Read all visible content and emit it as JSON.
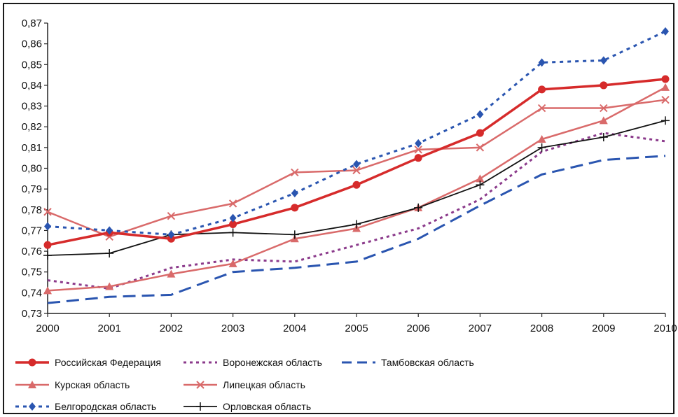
{
  "chart_data": {
    "type": "line",
    "x": [
      "2000",
      "2001",
      "2002",
      "2003",
      "2004",
      "2005",
      "2006",
      "2007",
      "2008",
      "2009",
      "2010"
    ],
    "ylim": [
      0.73,
      0.87
    ],
    "yticks": [
      "0,73",
      "0,74",
      "0,75",
      "0,76",
      "0,77",
      "0,78",
      "0,79",
      "0,80",
      "0,81",
      "0,82",
      "0,83",
      "0,84",
      "0,85",
      "0,86",
      "0,87"
    ],
    "grid": false,
    "legend_position": "bottom",
    "series": [
      {
        "name": "Российская Федерация",
        "color": "#d62b2b",
        "style": "solid",
        "marker": "circle",
        "width": 3.5,
        "values": [
          0.763,
          0.769,
          0.766,
          0.773,
          0.781,
          0.792,
          0.805,
          0.817,
          0.838,
          0.84,
          0.843
        ]
      },
      {
        "name": "Воронежская область",
        "color": "#8b3a8b",
        "style": "dotted",
        "marker": "none",
        "width": 3,
        "values": [
          0.746,
          0.742,
          0.752,
          0.756,
          0.755,
          0.763,
          0.771,
          0.785,
          0.808,
          0.817,
          0.813
        ]
      },
      {
        "name": "Тамбовская область",
        "color": "#2a55b0",
        "style": "dashed",
        "marker": "none",
        "width": 3,
        "values": [
          0.735,
          0.738,
          0.739,
          0.75,
          0.752,
          0.755,
          0.766,
          0.782,
          0.797,
          0.804,
          0.806
        ]
      },
      {
        "name": "Курская область",
        "color": "#d96a6a",
        "style": "solid",
        "marker": "triangle",
        "width": 2.5,
        "values": [
          0.741,
          0.743,
          0.749,
          0.754,
          0.766,
          0.771,
          0.781,
          0.795,
          0.814,
          0.823,
          0.839
        ]
      },
      {
        "name": "Липецкая область",
        "color": "#d96a6a",
        "style": "solid",
        "marker": "x",
        "width": 2.5,
        "values": [
          0.779,
          0.767,
          0.777,
          0.783,
          0.798,
          0.799,
          0.809,
          0.81,
          0.829,
          0.829,
          0.833
        ]
      },
      {
        "name": "Белгородская область",
        "color": "#2a55b0",
        "style": "dashed-dot",
        "marker": "diamond",
        "width": 3,
        "values": [
          0.772,
          0.77,
          0.768,
          0.776,
          0.788,
          0.802,
          0.812,
          0.826,
          0.851,
          0.852,
          0.866
        ]
      },
      {
        "name": "Орловская область",
        "color": "#111111",
        "style": "solid",
        "marker": "plus",
        "width": 1.8,
        "values": [
          0.758,
          0.759,
          0.768,
          0.769,
          0.768,
          0.773,
          0.781,
          0.792,
          0.81,
          0.815,
          0.823
        ]
      }
    ]
  }
}
